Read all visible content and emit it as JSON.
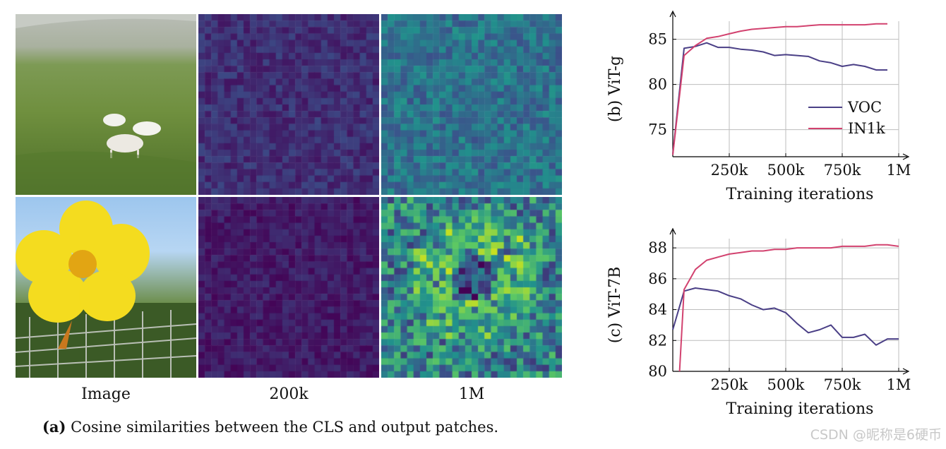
{
  "figure": {
    "column_labels": [
      "Image",
      "200k",
      "1M"
    ],
    "caption_tag": "(a)",
    "caption_text": "Cosine similarities between the CLS and output patches.",
    "watermark": "CSDN @昵称是6硬币"
  },
  "colors": {
    "voc": "#4a3f86",
    "in1k": "#d2426f",
    "grid": "#bdbdbd",
    "heat_low": "#440154",
    "heat_mid": "#21918c",
    "heat_high": "#c8e020"
  },
  "chart_data": [
    {
      "type": "line",
      "panel_label": "(b) ViT-g",
      "xlabel": "Training iterations",
      "ylabel": "",
      "xlim": [
        0,
        1000000
      ],
      "ylim": [
        72,
        87
      ],
      "xticks": [
        250000,
        500000,
        750000,
        1000000
      ],
      "xtick_labels": [
        "250k",
        "500k",
        "750k",
        "1M"
      ],
      "yticks": [
        75,
        80,
        85
      ],
      "ytick_labels": [
        "75",
        "80",
        "85"
      ],
      "grid": true,
      "legend": "lower-right",
      "series": [
        {
          "name": "VOC",
          "color": "#4a3f86",
          "x": [
            0,
            50000,
            100000,
            150000,
            200000,
            250000,
            300000,
            350000,
            400000,
            450000,
            500000,
            550000,
            600000,
            650000,
            700000,
            750000,
            800000,
            850000,
            900000,
            950000
          ],
          "y": [
            72.3,
            84.0,
            84.2,
            84.6,
            84.1,
            84.1,
            83.9,
            83.8,
            83.6,
            83.2,
            83.3,
            83.2,
            83.1,
            82.6,
            82.4,
            82.0,
            82.2,
            82.0,
            81.6,
            81.6
          ]
        },
        {
          "name": "IN1k",
          "color": "#d2426f",
          "x": [
            0,
            50000,
            100000,
            150000,
            200000,
            250000,
            300000,
            350000,
            400000,
            450000,
            500000,
            550000,
            600000,
            650000,
            700000,
            750000,
            800000,
            850000,
            900000,
            950000
          ],
          "y": [
            72.2,
            83.2,
            84.3,
            85.1,
            85.3,
            85.6,
            85.9,
            86.1,
            86.2,
            86.3,
            86.4,
            86.4,
            86.5,
            86.6,
            86.6,
            86.6,
            86.6,
            86.6,
            86.7,
            86.7
          ]
        }
      ]
    },
    {
      "type": "line",
      "panel_label": "(c) ViT-7B",
      "xlabel": "Training iterations",
      "ylabel": "",
      "xlim": [
        0,
        1000000
      ],
      "ylim": [
        80,
        88.6
      ],
      "xticks": [
        250000,
        500000,
        750000,
        1000000
      ],
      "xtick_labels": [
        "250k",
        "500k",
        "750k",
        "1M"
      ],
      "yticks": [
        80,
        82,
        84,
        86,
        88
      ],
      "ytick_labels": [
        "80",
        "82",
        "84",
        "86",
        "88"
      ],
      "grid": true,
      "legend": "none",
      "series": [
        {
          "name": "VOC",
          "color": "#4a3f86",
          "x": [
            0,
            50000,
            100000,
            150000,
            200000,
            250000,
            300000,
            350000,
            400000,
            450000,
            500000,
            550000,
            600000,
            650000,
            700000,
            750000,
            800000,
            850000,
            900000,
            950000,
            1000000
          ],
          "y": [
            82.7,
            85.2,
            85.4,
            85.3,
            85.2,
            84.9,
            84.7,
            84.3,
            84.0,
            84.1,
            83.8,
            83.1,
            82.5,
            82.7,
            83.0,
            82.2,
            82.2,
            82.4,
            81.7,
            82.1,
            82.1
          ]
        },
        {
          "name": "IN1k",
          "color": "#d2426f",
          "x": [
            30000,
            50000,
            100000,
            150000,
            200000,
            250000,
            300000,
            350000,
            400000,
            450000,
            500000,
            550000,
            600000,
            650000,
            700000,
            750000,
            800000,
            850000,
            900000,
            950000,
            1000000
          ],
          "y": [
            80.0,
            85.3,
            86.6,
            87.2,
            87.4,
            87.6,
            87.7,
            87.8,
            87.8,
            87.9,
            87.9,
            88.0,
            88.0,
            88.0,
            88.0,
            88.1,
            88.1,
            88.1,
            88.2,
            88.2,
            88.1
          ]
        }
      ]
    }
  ]
}
